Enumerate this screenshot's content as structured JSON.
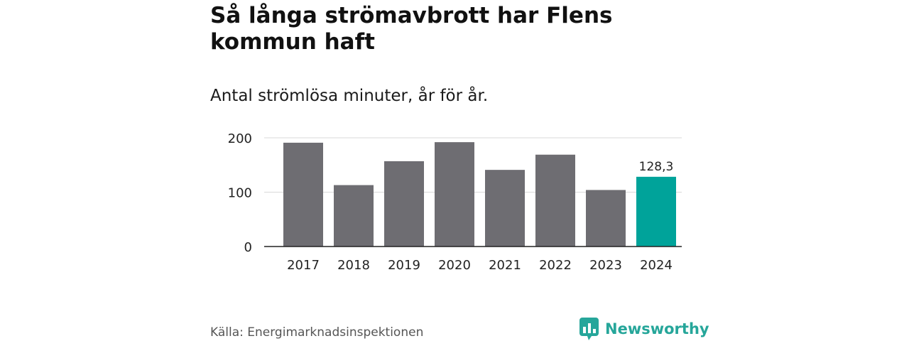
{
  "header": {
    "title": "Så långa strömavbrott har Flens kommun haft",
    "subtitle": "Antal strömlösa minuter, år för år."
  },
  "footer": {
    "source": "Källa: Energimarknadsinspektionen",
    "brand": "Newsworthy"
  },
  "colors": {
    "bar": "#6e6d72",
    "highlight": "#00a39a",
    "brand": "#26a69a"
  },
  "chart_data": {
    "type": "bar",
    "title": "Så långa strömavbrott har Flens kommun haft",
    "subtitle": "Antal strömlösa minuter, år för år.",
    "categories": [
      "2017",
      "2018",
      "2019",
      "2020",
      "2021",
      "2022",
      "2023",
      "2024"
    ],
    "values": [
      191,
      113,
      157,
      192,
      141,
      169,
      104,
      128.3
    ],
    "highlight_index": 7,
    "data_labels": [
      {
        "index": 7,
        "text": "128,3"
      }
    ],
    "yticks": [
      "0",
      "100",
      "200"
    ],
    "ylim": [
      0,
      200
    ],
    "grid": true,
    "xlabel": "",
    "ylabel": ""
  }
}
